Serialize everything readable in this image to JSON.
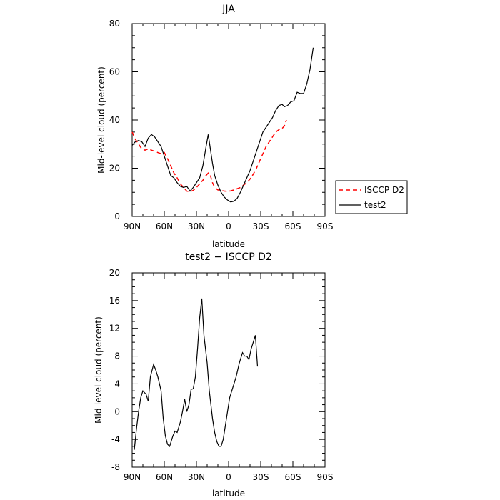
{
  "chart_data": [
    {
      "type": "line",
      "title": "JJA",
      "xlabel": "latitude",
      "ylabel": "Mid-level cloud (percent)",
      "xlim": [
        -90,
        90
      ],
      "ylim": [
        0,
        80
      ],
      "x_ticks": [
        {
          "value": -90,
          "label": "90N"
        },
        {
          "value": -60,
          "label": "60N"
        },
        {
          "value": -30,
          "label": "30N"
        },
        {
          "value": 0,
          "label": "0"
        },
        {
          "value": 30,
          "label": "30S"
        },
        {
          "value": 60,
          "label": "60S"
        },
        {
          "value": 90,
          "label": "90S"
        }
      ],
      "y_ticks": [
        0,
        20,
        40,
        60,
        80
      ],
      "legend": {
        "position": "right"
      },
      "series": [
        {
          "name": "ISCCP D2",
          "color": "#ff0000",
          "style": "dashed",
          "points": [
            [
              -90,
              35
            ],
            [
              -87,
              32
            ],
            [
              -84,
              30
            ],
            [
              -81,
              28
            ],
            [
              -78,
              27.5
            ],
            [
              -75,
              28
            ],
            [
              -72,
              27.5
            ],
            [
              -69,
              27
            ],
            [
              -66,
              26.5
            ],
            [
              -63,
              26
            ],
            [
              -60,
              26.5
            ],
            [
              -57,
              24
            ],
            [
              -54,
              21
            ],
            [
              -51,
              18
            ],
            [
              -48,
              16
            ],
            [
              -45,
              13.5
            ],
            [
              -42,
              12
            ],
            [
              -39,
              10.5
            ],
            [
              -36,
              10.3
            ],
            [
              -33,
              10.8
            ],
            [
              -30,
              12
            ],
            [
              -27,
              13.5
            ],
            [
              -24,
              15
            ],
            [
              -21,
              17
            ],
            [
              -19,
              18
            ],
            [
              -17,
              17
            ],
            [
              -15,
              14
            ],
            [
              -13,
              12
            ],
            [
              -10,
              11
            ],
            [
              -7,
              10.8
            ],
            [
              -4,
              10.5
            ],
            [
              -1,
              10.4
            ],
            [
              2,
              10.6
            ],
            [
              5,
              11
            ],
            [
              8,
              11.5
            ],
            [
              11,
              12
            ],
            [
              14,
              13
            ],
            [
              17,
              14
            ],
            [
              20,
              15.5
            ],
            [
              23,
              17.5
            ],
            [
              26,
              20
            ],
            [
              29,
              23
            ],
            [
              32,
              26
            ],
            [
              35,
              29
            ],
            [
              38,
              31
            ],
            [
              41,
              33
            ],
            [
              44,
              35
            ],
            [
              47,
              36
            ],
            [
              50,
              36.5
            ],
            [
              52,
              37.5
            ],
            [
              54,
              40
            ]
          ]
        },
        {
          "name": "test2",
          "color": "#000000",
          "style": "solid",
          "points": [
            [
              -90,
              29.5
            ],
            [
              -87,
              31
            ],
            [
              -84,
              31.5
            ],
            [
              -81,
              31
            ],
            [
              -78,
              29
            ],
            [
              -75,
              32.5
            ],
            [
              -72,
              34
            ],
            [
              -69,
              33
            ],
            [
              -66,
              31
            ],
            [
              -63,
              29
            ],
            [
              -60,
              25
            ],
            [
              -57,
              21
            ],
            [
              -54,
              17
            ],
            [
              -51,
              16
            ],
            [
              -48,
              14
            ],
            [
              -45,
              12.5
            ],
            [
              -42,
              12
            ],
            [
              -39,
              12.5
            ],
            [
              -36,
              10.5
            ],
            [
              -33,
              12
            ],
            [
              -30,
              14
            ],
            [
              -27,
              16
            ],
            [
              -24,
              21
            ],
            [
              -21,
              29
            ],
            [
              -19,
              34
            ],
            [
              -17,
              28
            ],
            [
              -15,
              22
            ],
            [
              -13,
              17
            ],
            [
              -10,
              13
            ],
            [
              -7,
              10
            ],
            [
              -4,
              8
            ],
            [
              -1,
              6.8
            ],
            [
              2,
              6
            ],
            [
              5,
              6.3
            ],
            [
              8,
              7.5
            ],
            [
              11,
              10
            ],
            [
              14,
              13
            ],
            [
              17,
              16
            ],
            [
              20,
              19
            ],
            [
              23,
              23
            ],
            [
              26,
              27
            ],
            [
              29,
              31
            ],
            [
              32,
              35
            ],
            [
              35,
              37
            ],
            [
              38,
              39
            ],
            [
              41,
              41
            ],
            [
              44,
              44
            ],
            [
              47,
              46
            ],
            [
              50,
              46.5
            ],
            [
              52,
              45.5
            ],
            [
              55,
              46
            ],
            [
              58,
              47.5
            ],
            [
              61,
              48
            ],
            [
              64,
              51.5
            ],
            [
              67,
              51
            ],
            [
              70,
              51
            ],
            [
              73,
              55
            ],
            [
              76,
              61
            ],
            [
              79,
              70
            ]
          ]
        }
      ]
    },
    {
      "type": "line",
      "title": "test2 − ISCCP D2",
      "xlabel": "latitude",
      "ylabel": "Mid-level cloud (percent)",
      "xlim": [
        -90,
        90
      ],
      "ylim": [
        -8,
        20
      ],
      "x_ticks": [
        {
          "value": -90,
          "label": "90N"
        },
        {
          "value": -60,
          "label": "60N"
        },
        {
          "value": -30,
          "label": "30N"
        },
        {
          "value": 0,
          "label": "0"
        },
        {
          "value": 30,
          "label": "30S"
        },
        {
          "value": 60,
          "label": "60S"
        },
        {
          "value": 90,
          "label": "90S"
        }
      ],
      "y_ticks": [
        -8,
        -4,
        0,
        4,
        8,
        12,
        16,
        20
      ],
      "series": [
        {
          "color": "#000000",
          "style": "solid",
          "points": [
            [
              -88,
              -5.5
            ],
            [
              -86,
              -2.5
            ],
            [
              -84,
              0
            ],
            [
              -82,
              2
            ],
            [
              -80,
              3
            ],
            [
              -77,
              2.5
            ],
            [
              -75,
              1.5
            ],
            [
              -73,
              5
            ],
            [
              -70,
              6.8
            ],
            [
              -68,
              6
            ],
            [
              -66,
              5
            ],
            [
              -63,
              3
            ],
            [
              -61,
              -1
            ],
            [
              -59,
              -3.5
            ],
            [
              -57,
              -4.7
            ],
            [
              -55,
              -5
            ],
            [
              -52,
              -3.5
            ],
            [
              -50,
              -2.8
            ],
            [
              -48,
              -3
            ],
            [
              -45,
              -1.5
            ],
            [
              -43,
              0
            ],
            [
              -41,
              1.8
            ],
            [
              -39,
              0
            ],
            [
              -37,
              1
            ],
            [
              -35,
              3.2
            ],
            [
              -33,
              3.3
            ],
            [
              -31,
              5
            ],
            [
              -29,
              9
            ],
            [
              -27,
              13.5
            ],
            [
              -25,
              16.3
            ],
            [
              -23,
              11
            ],
            [
              -20,
              7
            ],
            [
              -18,
              3
            ],
            [
              -15,
              -1
            ],
            [
              -13,
              -3
            ],
            [
              -11,
              -4.3
            ],
            [
              -9,
              -5
            ],
            [
              -7,
              -5
            ],
            [
              -5,
              -4
            ],
            [
              -3,
              -2
            ],
            [
              -1,
              0
            ],
            [
              1,
              2
            ],
            [
              4,
              3.5
            ],
            [
              7,
              5
            ],
            [
              10,
              7
            ],
            [
              13,
              8.5
            ],
            [
              15,
              8
            ],
            [
              17,
              8
            ],
            [
              19,
              7.5
            ],
            [
              21,
              9
            ],
            [
              23,
              10
            ],
            [
              25,
              11
            ],
            [
              27,
              6.5
            ]
          ]
        }
      ]
    }
  ]
}
